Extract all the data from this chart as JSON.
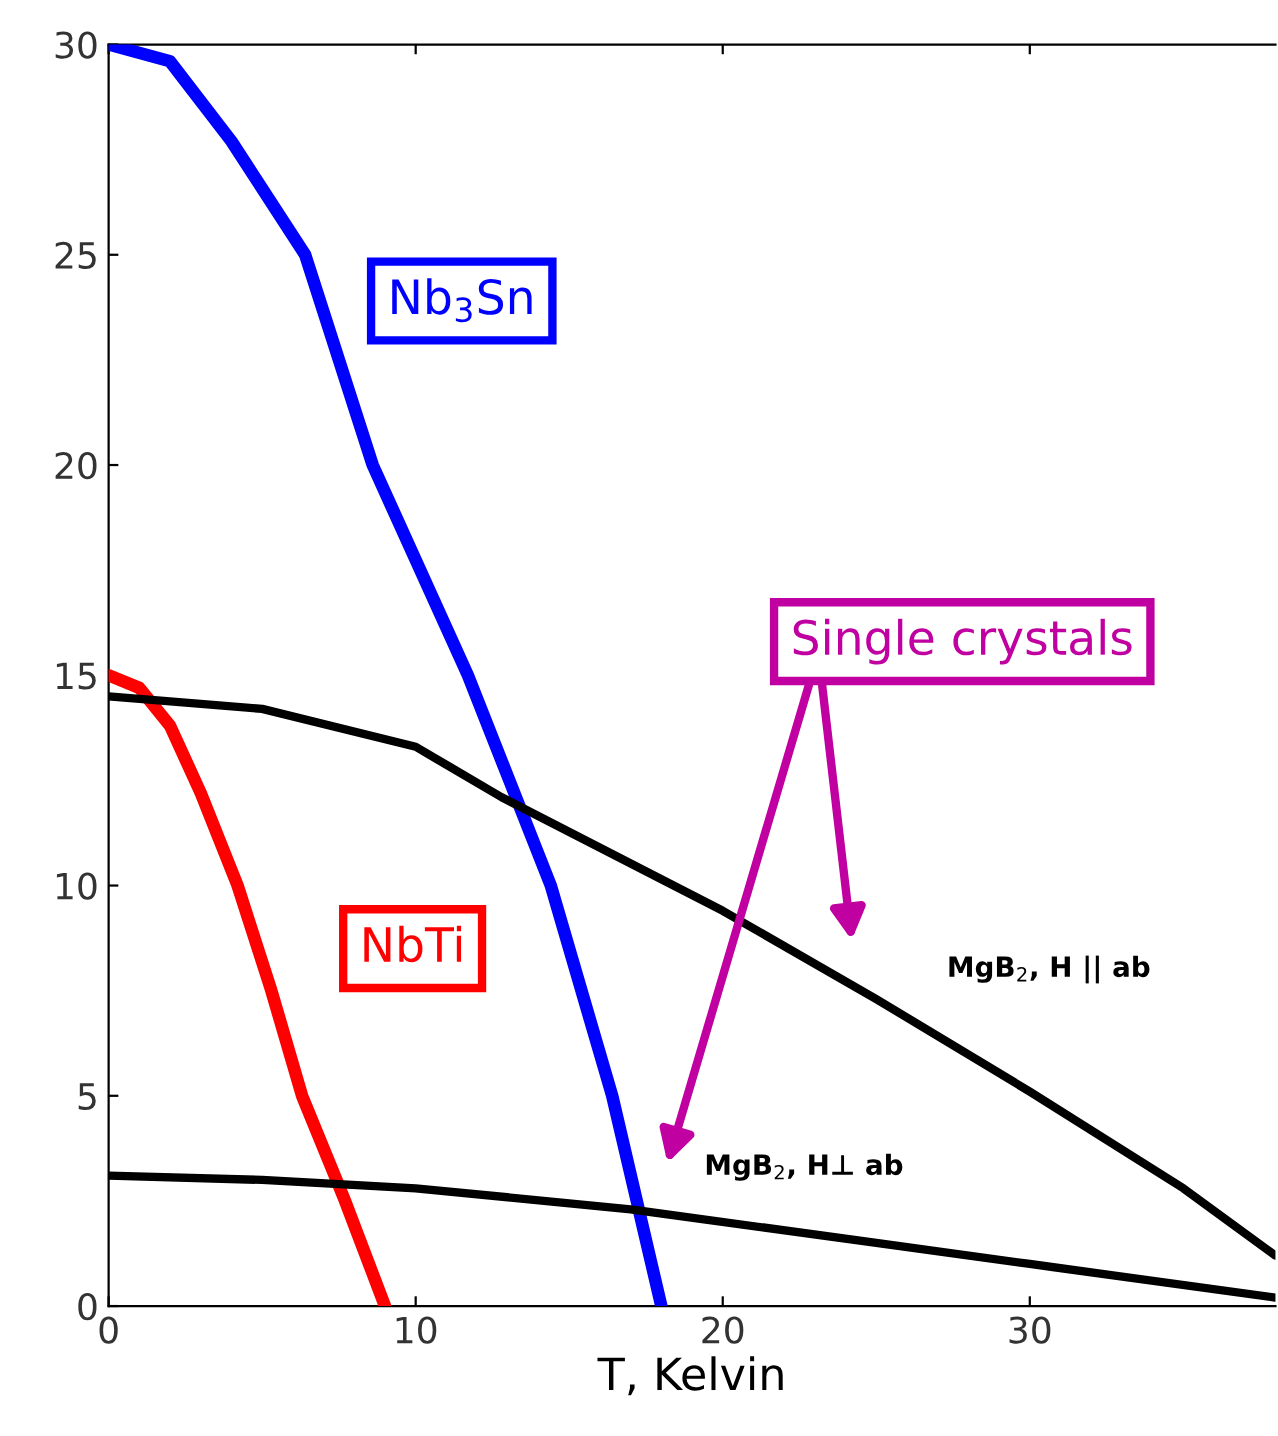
{
  "chart_data": {
    "type": "line",
    "xlabel": "T, Kelvin",
    "xlim": [
      0,
      38
    ],
    "ylim": [
      0,
      30
    ],
    "xticks": [
      0,
      10,
      20,
      30
    ],
    "yticks": [
      0,
      5,
      10,
      15,
      20,
      25,
      30
    ],
    "grid": false,
    "legend": false,
    "marker": "none",
    "line_style": "solid",
    "series": [
      {
        "name": "Nb$_{3}$Sn",
        "color": "#0000ff",
        "x": [
          0,
          2,
          4,
          6.4,
          8.6,
          11.7,
          14.4,
          16.4,
          18
        ],
        "values": [
          30,
          29.6,
          27.7,
          25,
          20,
          15,
          10,
          5,
          0
        ]
      },
      {
        "name": "NbTi",
        "color": "#ff0000",
        "x": [
          0,
          1,
          2,
          3,
          4.2,
          5.3,
          6.3,
          7.7,
          9
        ],
        "values": [
          15,
          14.7,
          13.8,
          12.2,
          10,
          7.5,
          5,
          2.5,
          0
        ]
      },
      {
        "name": "MgB$_{2}$, H || ab",
        "color": "#000000",
        "x": [
          0,
          5,
          10,
          12.8,
          20,
          25,
          30,
          35,
          38
        ],
        "values": [
          14.5,
          14.2,
          13.3,
          12.1,
          9.4,
          7.3,
          5.1,
          2.8,
          1.2
        ]
      },
      {
        "name": "MgB$_{2}$, H⊥ ab",
        "color": "#000000",
        "x": [
          0,
          5,
          10,
          17,
          25,
          30,
          38
        ],
        "values": [
          3.1,
          3.0,
          2.8,
          2.3,
          1.5,
          1.0,
          0.2
        ]
      }
    ],
    "annotations": [
      "Single crystals"
    ]
  }
}
